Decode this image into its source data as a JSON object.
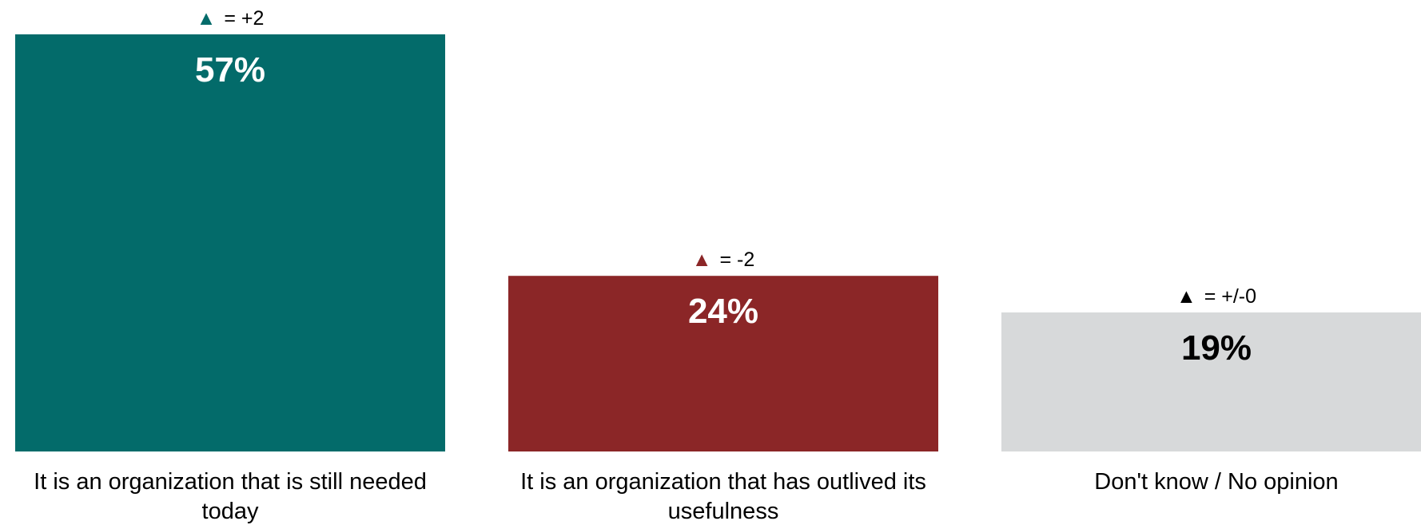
{
  "chart_data": {
    "type": "bar",
    "categories": [
      "It is an organization that is still needed today",
      "It is an organization that has outlived its usefulness",
      "Don't know / No opinion"
    ],
    "category_lines": [
      [
        "It is an organization that is still needed",
        "today"
      ],
      [
        "It is an organization that has outlived its",
        "usefulness"
      ],
      [
        "Don't know / No opinion"
      ]
    ],
    "values": [
      57,
      24,
      19
    ],
    "value_labels": [
      "57%",
      "24%",
      "19%"
    ],
    "changes": [
      "= +2",
      "= -2",
      "= +/-0"
    ],
    "change_marker": "▲",
    "ylim": [
      0,
      57
    ],
    "grid": false,
    "legend": "none",
    "colors": [
      "#036b6a",
      "#8b2627",
      "#d7d9da"
    ],
    "marker_colors": [
      "#036b6a",
      "#8b2627",
      "#000000"
    ],
    "value_label_colors": [
      "#ffffff",
      "#ffffff",
      "#000000"
    ]
  }
}
